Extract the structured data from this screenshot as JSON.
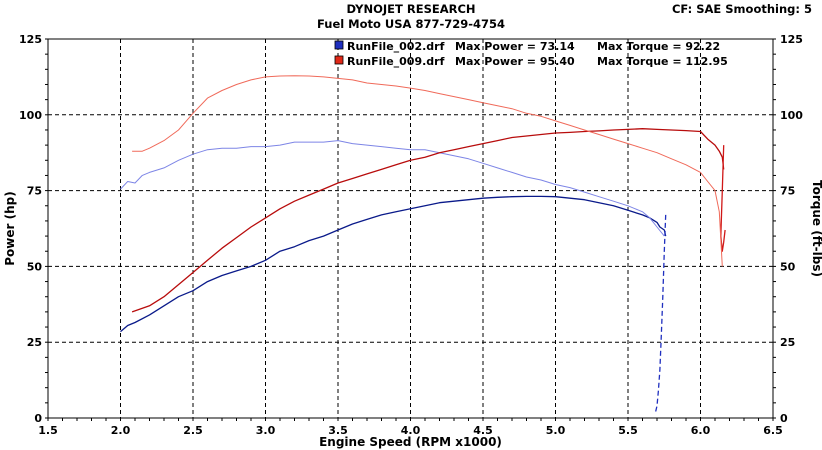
{
  "header": {
    "title": "DYNOJET RESEARCH",
    "subtitle": "Fuel Moto USA 877-729-4754",
    "settings": "CF: SAE  Smoothing: 5"
  },
  "chart_data": {
    "type": "line",
    "xlabel": "Engine Speed (RPM x1000)",
    "ylabel_left": "Power (hp)",
    "ylabel_right": "Torque (ft-lbs)",
    "xlim": [
      1.5,
      6.5
    ],
    "ylim": [
      0,
      125
    ],
    "x_ticks": [
      "1.5",
      "2.0",
      "2.5",
      "3.0",
      "3.5",
      "4.0",
      "4.5",
      "5.0",
      "5.5",
      "6.0",
      "6.5"
    ],
    "y_ticks": [
      "0",
      "25",
      "50",
      "75",
      "100",
      "125"
    ],
    "grid": true,
    "legend": [
      {
        "name": "RunFile_002.drf",
        "max_power_label": "Max Power = 73.14",
        "max_torque_label": "Max Torque = 92.22",
        "color": "#1f2fbf"
      },
      {
        "name": "RunFile_009.drf",
        "max_power_label": "Max Power = 95.40",
        "max_torque_label": "Max Torque = 112.95",
        "color": "#e02818"
      }
    ],
    "series": [
      {
        "name": "RunFile_002.drf Power",
        "color": "#0a1a8a",
        "width": 1.3,
        "dash": false,
        "x": [
          2.0,
          2.05,
          2.1,
          2.2,
          2.3,
          2.4,
          2.5,
          2.6,
          2.7,
          2.8,
          2.9,
          3.0,
          3.1,
          3.2,
          3.3,
          3.4,
          3.5,
          3.6,
          3.7,
          3.8,
          3.9,
          4.0,
          4.1,
          4.2,
          4.3,
          4.4,
          4.5,
          4.6,
          4.7,
          4.8,
          4.9,
          5.0,
          5.1,
          5.2,
          5.3,
          5.4,
          5.5,
          5.6,
          5.65,
          5.7,
          5.72,
          5.75,
          5.76
        ],
        "y": [
          28.5,
          30.5,
          31.5,
          34,
          37,
          40,
          42,
          45,
          47,
          48.5,
          50,
          52,
          55,
          56.5,
          58.5,
          60,
          62,
          64,
          65.5,
          67,
          68,
          69,
          70,
          71,
          71.5,
          72,
          72.5,
          72.8,
          73,
          73.1,
          73.1,
          73,
          72.5,
          72,
          71,
          70,
          68.5,
          67,
          66,
          64.5,
          63,
          62,
          60
        ]
      },
      {
        "name": "RunFile_002.drf Power tail",
        "color": "#1f2fbf",
        "width": 1.3,
        "dash": true,
        "x": [
          5.76,
          5.75,
          5.74,
          5.73,
          5.72,
          5.71,
          5.7,
          5.69
        ],
        "y": [
          67,
          55,
          40,
          28,
          16,
          9,
          4,
          2
        ]
      },
      {
        "name": "RunFile_002.drf Torque",
        "color": "#7d85e6",
        "width": 1,
        "dash": false,
        "x": [
          2.0,
          2.05,
          2.1,
          2.15,
          2.2,
          2.3,
          2.4,
          2.5,
          2.6,
          2.7,
          2.8,
          2.9,
          3.0,
          3.1,
          3.2,
          3.3,
          3.4,
          3.5,
          3.6,
          3.7,
          3.8,
          3.9,
          4.0,
          4.1,
          4.2,
          4.3,
          4.4,
          4.5,
          4.6,
          4.7,
          4.8,
          4.9,
          5.0,
          5.1,
          5.2,
          5.3,
          5.4,
          5.5,
          5.6,
          5.65,
          5.7,
          5.75
        ],
        "y": [
          75.5,
          78,
          77.5,
          80,
          81,
          82.5,
          85,
          87,
          88.5,
          89,
          89,
          89.5,
          89.5,
          90,
          91,
          91,
          91,
          91.5,
          90.5,
          90,
          89.5,
          89,
          88.5,
          88.5,
          87.5,
          86.5,
          85.5,
          84,
          82.5,
          81,
          79.5,
          78.5,
          77,
          76,
          74.5,
          73,
          71.5,
          70,
          68,
          66,
          63,
          60
        ]
      },
      {
        "name": "RunFile_009.drf Power",
        "color": "#b80c0c",
        "width": 1.3,
        "dash": false,
        "x": [
          2.08,
          2.2,
          2.3,
          2.4,
          2.5,
          2.6,
          2.7,
          2.8,
          2.9,
          3.0,
          3.1,
          3.2,
          3.3,
          3.4,
          3.5,
          3.6,
          3.7,
          3.8,
          3.9,
          4.0,
          4.1,
          4.2,
          4.3,
          4.4,
          4.5,
          4.6,
          4.7,
          4.8,
          4.9,
          5.0,
          5.1,
          5.2,
          5.3,
          5.4,
          5.5,
          5.6,
          5.7,
          5.8,
          5.9,
          6.0,
          6.05,
          6.1,
          6.13,
          6.15,
          6.16
        ],
        "y": [
          35,
          37,
          40,
          44,
          48,
          52,
          56,
          59.5,
          63,
          66,
          69,
          71.5,
          73.5,
          75.5,
          77.5,
          79,
          80.5,
          82,
          83.5,
          85,
          86,
          87.5,
          88.5,
          89.5,
          90.5,
          91.5,
          92.5,
          93,
          93.5,
          94,
          94.2,
          94.5,
          94.7,
          95,
          95.2,
          95.4,
          95.2,
          95,
          94.8,
          94.5,
          92,
          90,
          88,
          86,
          82
        ]
      },
      {
        "name": "RunFile_009.drf Power tail",
        "color": "#d01818",
        "width": 1.3,
        "dash": false,
        "x": [
          6.16,
          6.15,
          6.14,
          6.15,
          6.16,
          6.17
        ],
        "y": [
          90,
          75,
          60,
          55,
          58,
          62
        ]
      },
      {
        "name": "RunFile_009.drf Torque",
        "color": "#f06a5a",
        "width": 1,
        "dash": false,
        "x": [
          2.08,
          2.15,
          2.2,
          2.3,
          2.4,
          2.5,
          2.6,
          2.7,
          2.8,
          2.9,
          3.0,
          3.1,
          3.2,
          3.3,
          3.4,
          3.5,
          3.6,
          3.7,
          3.8,
          3.9,
          4.0,
          4.1,
          4.2,
          4.3,
          4.4,
          4.5,
          4.6,
          4.7,
          4.8,
          4.9,
          5.0,
          5.1,
          5.2,
          5.3,
          5.4,
          5.5,
          5.6,
          5.7,
          5.8,
          5.9,
          6.0,
          6.05,
          6.1,
          6.13,
          6.15
        ],
        "y": [
          88,
          88,
          89,
          91.5,
          95,
          100.5,
          105.5,
          108,
          110,
          111.5,
          112.5,
          112.8,
          112.9,
          112.8,
          112.5,
          112,
          111.5,
          110.5,
          110,
          109.5,
          108.8,
          108,
          107,
          106,
          105,
          104,
          103,
          102,
          100.5,
          99.5,
          98,
          96.5,
          95,
          93.5,
          92,
          90.5,
          89,
          87.5,
          85.5,
          83.5,
          81,
          78,
          75,
          68,
          50
        ]
      }
    ]
  }
}
